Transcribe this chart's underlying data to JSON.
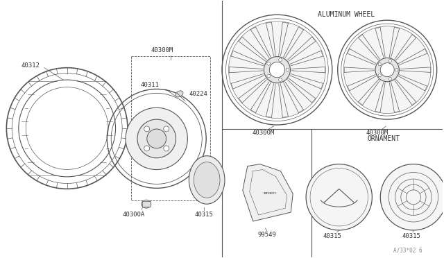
{
  "bg_color": "#ffffff",
  "line_color": "#555555",
  "text_color": "#333333",
  "title_text": "ALUMINUM WHEEL",
  "ornament_text": "ORNAMENT",
  "watermark": "A/33*02 6",
  "font": "monospace",
  "lw": 0.7
}
